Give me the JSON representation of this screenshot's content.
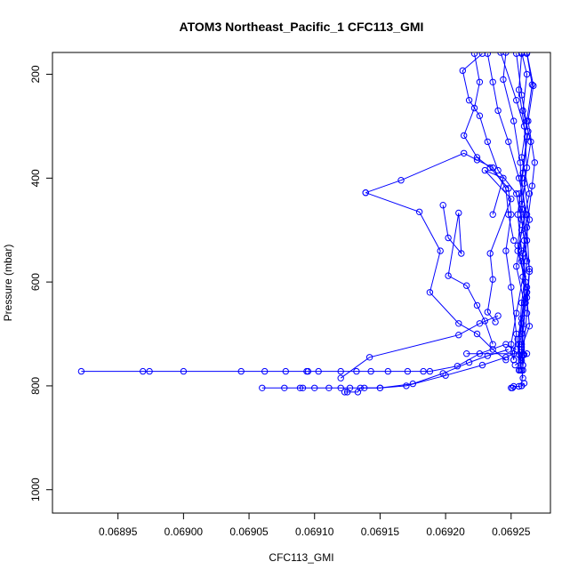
{
  "chart_data": {
    "type": "scatter",
    "title": "ATOM3 Northeast_Pacific_1 CFC113_GMI",
    "xlabel": "CFC113_GMI",
    "ylabel": "Pressure (mbar)",
    "xlim": [
      0.0689,
      0.06928
    ],
    "ylim": [
      1045,
      158
    ],
    "y_axis_inverted": true,
    "x_ticks": [
      0.06895,
      0.069,
      0.06905,
      0.0691,
      0.06915,
      0.0692,
      0.06925
    ],
    "x_tick_labels": [
      "0.06895",
      "0.06900",
      "0.06905",
      "0.06910",
      "0.06915",
      "0.06920",
      "0.06925"
    ],
    "y_ticks": [
      200,
      400,
      600,
      800,
      1000
    ],
    "y_tick_labels": [
      "200",
      "400",
      "600",
      "800",
      "1000"
    ],
    "grid": false,
    "legend": "none",
    "style": {
      "color": "#0000ff",
      "marker": "open-circle",
      "lines": true,
      "stroke_width": 1
    },
    "series": [
      {
        "points": [
          [
            0.069242,
            158
          ],
          [
            0.069254,
            250
          ],
          [
            0.069262,
            320
          ],
          [
            0.069258,
            400
          ],
          [
            0.069261,
            470
          ],
          [
            0.069255,
            540
          ],
          [
            0.069262,
            610
          ],
          [
            0.069258,
            680
          ],
          [
            0.06926,
            740
          ],
          [
            0.069259,
            760
          ],
          [
            0.069258,
            800
          ]
        ]
      },
      {
        "points": [
          [
            0.069246,
            158
          ],
          [
            0.069244,
            210
          ],
          [
            0.069252,
            290
          ],
          [
            0.069257,
            370
          ],
          [
            0.069258,
            450
          ],
          [
            0.069262,
            520
          ],
          [
            0.069259,
            590
          ],
          [
            0.069254,
            660
          ],
          [
            0.06925,
            720
          ],
          [
            0.069252,
            750
          ]
        ]
      },
      {
        "points": [
          [
            0.069262,
            160
          ],
          [
            0.069266,
            220
          ],
          [
            0.069262,
            290
          ],
          [
            0.069258,
            360
          ],
          [
            0.069264,
            430
          ],
          [
            0.069258,
            500
          ],
          [
            0.069254,
            570
          ],
          [
            0.06926,
            640
          ],
          [
            0.069255,
            710
          ],
          [
            0.069256,
            770
          ]
        ]
      },
      {
        "points": [
          [
            0.069232,
            160
          ],
          [
            0.069236,
            215
          ],
          [
            0.06924,
            270
          ],
          [
            0.069248,
            330
          ],
          [
            0.069256,
            400
          ],
          [
            0.069262,
            470
          ],
          [
            0.069259,
            545
          ],
          [
            0.069262,
            620
          ],
          [
            0.069258,
            700
          ],
          [
            0.069259,
            760
          ]
        ]
      },
      {
        "points": [
          [
            0.069258,
            160
          ],
          [
            0.069256,
            230
          ],
          [
            0.06926,
            300
          ],
          [
            0.069262,
            380
          ],
          [
            0.069258,
            460
          ],
          [
            0.069255,
            530
          ],
          [
            0.069261,
            600
          ],
          [
            0.069258,
            670
          ],
          [
            0.069256,
            740
          ],
          [
            0.069259,
            785
          ]
        ]
      },
      {
        "points": [
          [
            0.069222,
            160
          ],
          [
            0.069226,
            215
          ],
          [
            0.069222,
            265
          ],
          [
            0.069214,
            318
          ],
          [
            0.069224,
            360
          ],
          [
            0.069234,
            380
          ],
          [
            0.069248,
            420
          ],
          [
            0.06925,
            470
          ],
          [
            0.069246,
            540
          ],
          [
            0.06925,
            610
          ],
          [
            0.069254,
            700
          ],
          [
            0.069252,
            750
          ]
        ]
      },
      {
        "points": [
          [
            0.069228,
            160
          ],
          [
            0.069213,
            193
          ],
          [
            0.069218,
            250
          ],
          [
            0.069226,
            280
          ],
          [
            0.069232,
            330
          ],
          [
            0.06924,
            385
          ],
          [
            0.069254,
            430
          ],
          [
            0.069258,
            480
          ],
          [
            0.069262,
            560
          ],
          [
            0.069258,
            640
          ],
          [
            0.069256,
            720
          ],
          [
            0.069258,
            770
          ]
        ]
      },
      {
        "points": [
          [
            0.069258,
            158
          ],
          [
            0.069262,
            200
          ],
          [
            0.069259,
            270
          ],
          [
            0.069265,
            330
          ],
          [
            0.06926,
            410
          ],
          [
            0.069264,
            480
          ],
          [
            0.069258,
            560
          ],
          [
            0.069261,
            640
          ],
          [
            0.069258,
            730
          ],
          [
            0.069257,
            770
          ]
        ]
      },
      {
        "points": [
          [
            0.069254,
            160
          ],
          [
            0.069258,
            240
          ],
          [
            0.069263,
            310
          ],
          [
            0.069259,
            390
          ],
          [
            0.069255,
            470
          ],
          [
            0.069258,
            540
          ],
          [
            0.069262,
            620
          ],
          [
            0.069259,
            690
          ],
          [
            0.069258,
            720
          ],
          [
            0.069258,
            745
          ]
        ]
      },
      {
        "points": [
          [
            0.069262,
            158
          ],
          [
            0.069267,
            222
          ],
          [
            0.069263,
            290
          ],
          [
            0.069268,
            370
          ],
          [
            0.069266,
            415
          ],
          [
            0.069262,
            495
          ],
          [
            0.069264,
            580
          ],
          [
            0.069262,
            660
          ],
          [
            0.069259,
            740
          ]
        ]
      },
      {
        "points": [
          [
            0.069139,
            428
          ],
          [
            0.069166,
            404
          ],
          [
            0.069214,
            352
          ],
          [
            0.069224,
            365
          ],
          [
            0.069236,
            380
          ],
          [
            0.069246,
            420
          ],
          [
            0.069248,
            470
          ],
          [
            0.069252,
            520
          ]
        ]
      },
      {
        "points": [
          [
            0.069139,
            428
          ],
          [
            0.06918,
            465
          ],
          [
            0.069196,
            540
          ],
          [
            0.069188,
            620
          ],
          [
            0.06921,
            680
          ],
          [
            0.069224,
            700
          ],
          [
            0.069236,
            730
          ],
          [
            0.069246,
            750
          ]
        ]
      },
      {
        "points": [
          [
            0.069198,
            452
          ],
          [
            0.069202,
            515
          ],
          [
            0.069212,
            545
          ],
          [
            0.06921,
            467
          ],
          [
            0.069202,
            588
          ],
          [
            0.069216,
            607
          ],
          [
            0.069224,
            645
          ],
          [
            0.06923,
            675
          ],
          [
            0.069236,
            720
          ]
        ]
      },
      {
        "points": [
          [
            0.069236,
            470
          ],
          [
            0.069244,
            400
          ],
          [
            0.06923,
            385
          ],
          [
            0.06925,
            440
          ],
          [
            0.069234,
            545
          ],
          [
            0.069236,
            595
          ],
          [
            0.069232,
            658
          ],
          [
            0.069238,
            677
          ]
        ]
      },
      {
        "points": [
          [
            0.068922,
            772
          ],
          [
            0.068969,
            772
          ],
          [
            0.068974,
            772
          ],
          [
            0.069,
            772
          ],
          [
            0.069044,
            772
          ],
          [
            0.069062,
            772
          ],
          [
            0.069078,
            772
          ],
          [
            0.069094,
            772
          ],
          [
            0.069095,
            772
          ],
          [
            0.069103,
            772
          ],
          [
            0.06912,
            772
          ],
          [
            0.069132,
            772
          ],
          [
            0.069143,
            772
          ],
          [
            0.069156,
            772
          ],
          [
            0.069171,
            772
          ],
          [
            0.069183,
            772
          ],
          [
            0.069188,
            772
          ],
          [
            0.069209,
            762
          ],
          [
            0.069226,
            738
          ],
          [
            0.069246,
            720
          ],
          [
            0.069254,
            730
          ]
        ]
      },
      {
        "points": [
          [
            0.06906,
            804
          ],
          [
            0.069077,
            804
          ],
          [
            0.069089,
            804
          ],
          [
            0.069091,
            804
          ],
          [
            0.0691,
            804
          ],
          [
            0.069111,
            804
          ],
          [
            0.06912,
            804
          ],
          [
            0.069127,
            804
          ],
          [
            0.069138,
            804
          ],
          [
            0.06915,
            804
          ],
          [
            0.069175,
            796
          ],
          [
            0.069198,
            776
          ],
          [
            0.069218,
            755
          ],
          [
            0.069232,
            742
          ],
          [
            0.069248,
            730
          ]
        ]
      },
      {
        "points": [
          [
            0.069123,
            812
          ],
          [
            0.069125,
            812
          ],
          [
            0.069133,
            812
          ],
          [
            0.069135,
            804
          ],
          [
            0.06915,
            804
          ],
          [
            0.06917,
            800
          ],
          [
            0.0692,
            780
          ],
          [
            0.069228,
            760
          ],
          [
            0.069246,
            745
          ],
          [
            0.069252,
            738
          ]
        ]
      },
      {
        "points": [
          [
            0.06912,
            785
          ],
          [
            0.069142,
            745
          ],
          [
            0.06921,
            702
          ],
          [
            0.069226,
            680
          ],
          [
            0.06924,
            665
          ]
        ]
      },
      {
        "points": [
          [
            0.069216,
            738
          ],
          [
            0.069262,
            738
          ],
          [
            0.069258,
            752
          ],
          [
            0.069253,
            760
          ]
        ]
      },
      {
        "points": [
          [
            0.06925,
            804
          ],
          [
            0.069251,
            804
          ],
          [
            0.069252,
            801
          ],
          [
            0.069256,
            801
          ],
          [
            0.069258,
            800
          ],
          [
            0.06926,
            795
          ]
        ]
      },
      {
        "points": [
          [
            0.069256,
            430
          ],
          [
            0.06926,
            520
          ],
          [
            0.069264,
            575
          ],
          [
            0.069262,
            630
          ],
          [
            0.069264,
            685
          ],
          [
            0.069258,
            725
          ],
          [
            0.069259,
            770
          ]
        ]
      }
    ]
  }
}
